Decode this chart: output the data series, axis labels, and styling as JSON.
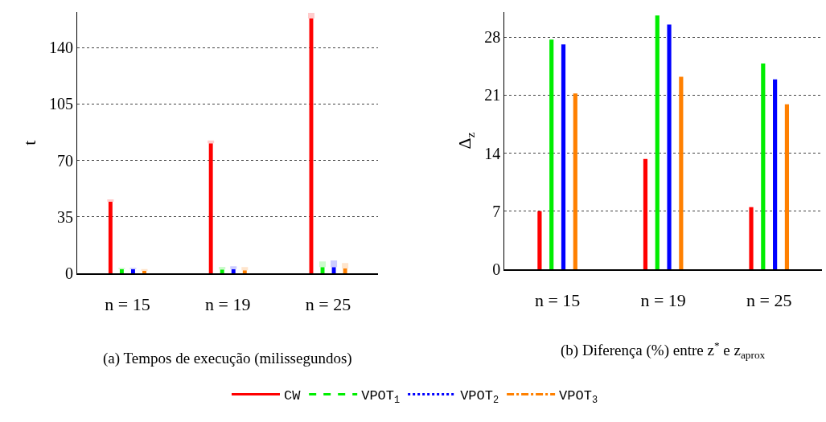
{
  "chart_data": [
    {
      "type": "bar",
      "title": "(a) Tempos de execução (milissegundos)",
      "ylabel": "t",
      "categories": [
        "n = 15",
        "n = 19",
        "n = 25"
      ],
      "ylim": [
        0,
        162
      ],
      "yticks": [
        0,
        35,
        70,
        105,
        140
      ],
      "grid": "y",
      "legend": "bottom",
      "series": [
        {
          "name": "CW",
          "color": "#ff0000",
          "line_style": "solid",
          "values": [
            44.4,
            80.7,
            158.1
          ],
          "errors": [
            [
              44.4,
              45.9
            ],
            [
              80.7,
              82.4
            ],
            [
              158.1,
              161.6
            ]
          ]
        },
        {
          "name": "VPOT$_{1}$",
          "color": "#00ee00",
          "line_style": "dashed",
          "values": [
            2.7,
            2.5,
            3.9
          ],
          "errors": [
            [
              2.7,
              3.5
            ],
            [
              2.5,
              4.1
            ],
            [
              3.9,
              7.4
            ]
          ]
        },
        {
          "name": "VPOT$_{2}$",
          "color": "#0000ff",
          "line_style": "dotted",
          "values": [
            2.7,
            2.7,
            3.9
          ],
          "errors": [
            [
              2.7,
              3.5
            ],
            [
              2.7,
              4.4
            ],
            [
              3.9,
              8.0
            ]
          ]
        },
        {
          "name": "VPOT$_{3}$",
          "color": "#ff8000",
          "line_style": "dashdot",
          "values": [
            1.6,
            2.0,
            3.1
          ],
          "errors": [
            [
              1.6,
              2.7
            ],
            [
              2.0,
              3.9
            ],
            [
              3.1,
              6.4
            ]
          ]
        }
      ]
    },
    {
      "type": "bar",
      "title": "(b) Diferença (%) entre z$^{*}$ e z$_{aprox}$",
      "ylabel": "Δ$_{z}$",
      "categories": [
        "n = 15",
        "n = 19",
        "n = 25"
      ],
      "ylim": [
        0,
        31
      ],
      "yticks": [
        0,
        7,
        14,
        21,
        28
      ],
      "grid": "y",
      "series": [
        {
          "name": "CW",
          "color": "#ff0000",
          "line_style": "solid",
          "values": [
            7.0,
            13.3,
            7.5
          ]
        },
        {
          "name": "VPOT$_{1}$",
          "color": "#00ee00",
          "line_style": "dashed",
          "values": [
            27.7,
            30.6,
            24.8
          ]
        },
        {
          "name": "VPOT$_{2}$",
          "color": "#0000ff",
          "line_style": "dotted",
          "values": [
            27.1,
            29.5,
            22.9
          ]
        },
        {
          "name": "VPOT$_{3}$",
          "color": "#ff8000",
          "line_style": "dashdot",
          "values": [
            21.2,
            23.2,
            19.9
          ]
        }
      ]
    }
  ]
}
